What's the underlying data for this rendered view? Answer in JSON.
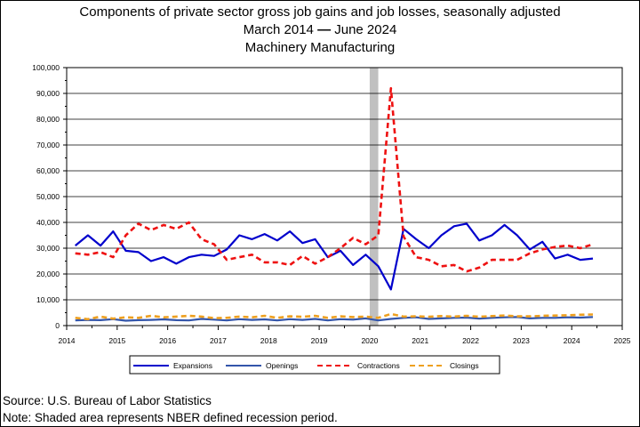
{
  "chart_data": {
    "type": "line",
    "title": "Components of private sector gross job gains and job losses, seasonally adjusted",
    "subtitle_start": "March 2014",
    "subtitle_dash": "—",
    "subtitle_end": "June 2024",
    "subtitle_industry": "Machinery Manufacturing",
    "xlim": [
      2014,
      2025
    ],
    "ylim": [
      0,
      100000
    ],
    "x_ticks": [
      "2014",
      "2015",
      "2016",
      "2017",
      "2018",
      "2019",
      "2020",
      "2021",
      "2022",
      "2023",
      "2024",
      "2025"
    ],
    "y_ticks": [
      "0",
      "10,000",
      "20,000",
      "30,000",
      "40,000",
      "50,000",
      "60,000",
      "70,000",
      "80,000",
      "90,000",
      "100,000"
    ],
    "grid": "horizontal",
    "legend_position": "bottom",
    "recession": {
      "start": 2020.0,
      "end": 2020.17
    },
    "x": [
      2014.17,
      2014.42,
      2014.67,
      2014.92,
      2015.17,
      2015.42,
      2015.67,
      2015.92,
      2016.17,
      2016.42,
      2016.67,
      2016.92,
      2017.17,
      2017.42,
      2017.67,
      2017.92,
      2018.17,
      2018.42,
      2018.67,
      2018.92,
      2019.17,
      2019.42,
      2019.67,
      2019.92,
      2020.17,
      2020.42,
      2020.67,
      2020.92,
      2021.17,
      2021.42,
      2021.67,
      2021.92,
      2022.17,
      2022.42,
      2022.67,
      2022.92,
      2023.17,
      2023.42,
      2023.67,
      2023.92,
      2024.17,
      2024.42
    ],
    "series": [
      {
        "name": "Expansions",
        "color": "#0000cc",
        "style": "solid",
        "values": [
          31000,
          35000,
          31000,
          36500,
          29000,
          28500,
          25000,
          26500,
          24000,
          26500,
          27500,
          27000,
          29500,
          35000,
          33500,
          35500,
          33000,
          36500,
          32000,
          33500,
          26500,
          29000,
          23500,
          27500,
          23000,
          14000,
          37500,
          33500,
          30000,
          35000,
          38500,
          39500,
          33000,
          35000,
          39000,
          35000,
          29500,
          32500,
          26000,
          27500,
          25500,
          26000
        ]
      },
      {
        "name": "Openings",
        "color": "#3355aa",
        "style": "solid",
        "values": [
          2000,
          2200,
          2100,
          2500,
          1900,
          2100,
          2200,
          2400,
          2100,
          2000,
          2600,
          2300,
          2000,
          2500,
          2200,
          2400,
          2000,
          2500,
          2200,
          2600,
          2000,
          2500,
          2300,
          2800,
          2000,
          2600,
          3000,
          3200,
          2600,
          2800,
          3000,
          3100,
          2700,
          3000,
          3200,
          3300,
          2800,
          3000,
          3000,
          3200,
          3100,
          3300
        ]
      },
      {
        "name": "Contractions",
        "color": "#ee1111",
        "style": "dashed",
        "values": [
          28000,
          27500,
          28500,
          26500,
          35000,
          39500,
          37000,
          39000,
          37500,
          40000,
          33500,
          31500,
          25500,
          26500,
          27500,
          24500,
          24500,
          23500,
          27000,
          24000,
          26500,
          30000,
          34000,
          31500,
          35000,
          92000,
          34500,
          26500,
          25500,
          23000,
          23500,
          21000,
          22500,
          25500,
          25500,
          25500,
          28000,
          29500,
          30500,
          31000,
          30000,
          31500
        ]
      },
      {
        "name": "Closings",
        "color": "#eea020",
        "style": "dashed",
        "values": [
          3000,
          2500,
          3500,
          2700,
          3200,
          3000,
          3800,
          3200,
          3500,
          3800,
          3500,
          2900,
          3000,
          3500,
          3200,
          3800,
          3000,
          3600,
          3400,
          3800,
          3000,
          3600,
          3300,
          3500,
          3000,
          4500,
          3500,
          3600,
          3400,
          3700,
          3500,
          3800,
          3400,
          3700,
          3900,
          3600,
          3600,
          3800,
          3900,
          4000,
          4200,
          4300
        ]
      }
    ]
  },
  "notes": {
    "source": "Source: U.S. Bureau of Labor Statistics",
    "note": "Note: Shaded area represents NBER defined recession period."
  }
}
